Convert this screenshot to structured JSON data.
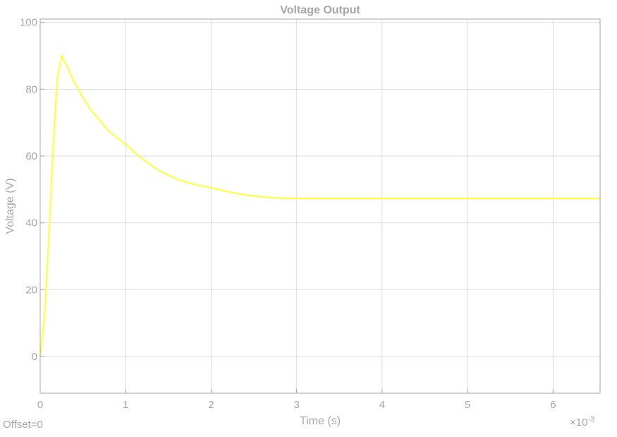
{
  "chart_data": {
    "type": "line",
    "title": "Voltage Output",
    "xlabel": "Time (s)",
    "ylabel": "Voltage (V)",
    "x_multiplier": "×10",
    "x_multiplier_exp": "-3",
    "offset_text": "Offset=0",
    "xlim": [
      0,
      6.55
    ],
    "ylim": [
      -11,
      101
    ],
    "xticks": [
      0,
      1,
      2,
      3,
      4,
      5,
      6
    ],
    "yticks": [
      0,
      20,
      40,
      60,
      80,
      100
    ],
    "xtick_labels": [
      "0",
      "1",
      "2",
      "3",
      "4",
      "5",
      "6"
    ],
    "ytick_labels": [
      "0",
      "20",
      "40",
      "60",
      "80",
      "100"
    ],
    "grid": true,
    "colors": {
      "line": "#ffff33",
      "grid": "#dcdcdc",
      "axes": "#a6a6a6",
      "background": "#ffffff"
    },
    "series": [
      {
        "x": [
          0,
          0.05,
          0.1,
          0.15,
          0.2,
          0.25,
          0.3,
          0.4,
          0.5,
          0.6,
          0.8,
          1.0,
          1.2,
          1.4,
          1.6,
          1.8,
          2.0,
          2.2,
          2.4,
          2.6,
          2.8,
          3.0,
          3.5,
          4.0,
          4.5,
          5.0,
          5.5,
          6.0,
          6.55
        ],
        "y": [
          0,
          12,
          35,
          62,
          83,
          90,
          87.5,
          82,
          77.5,
          73.5,
          67.5,
          63.5,
          59,
          55.5,
          53,
          51.5,
          50.5,
          49.3,
          48.3,
          47.8,
          47.4,
          47.3,
          47.3,
          47.3,
          47.3,
          47.3,
          47.3,
          47.3,
          47.3
        ]
      }
    ]
  }
}
